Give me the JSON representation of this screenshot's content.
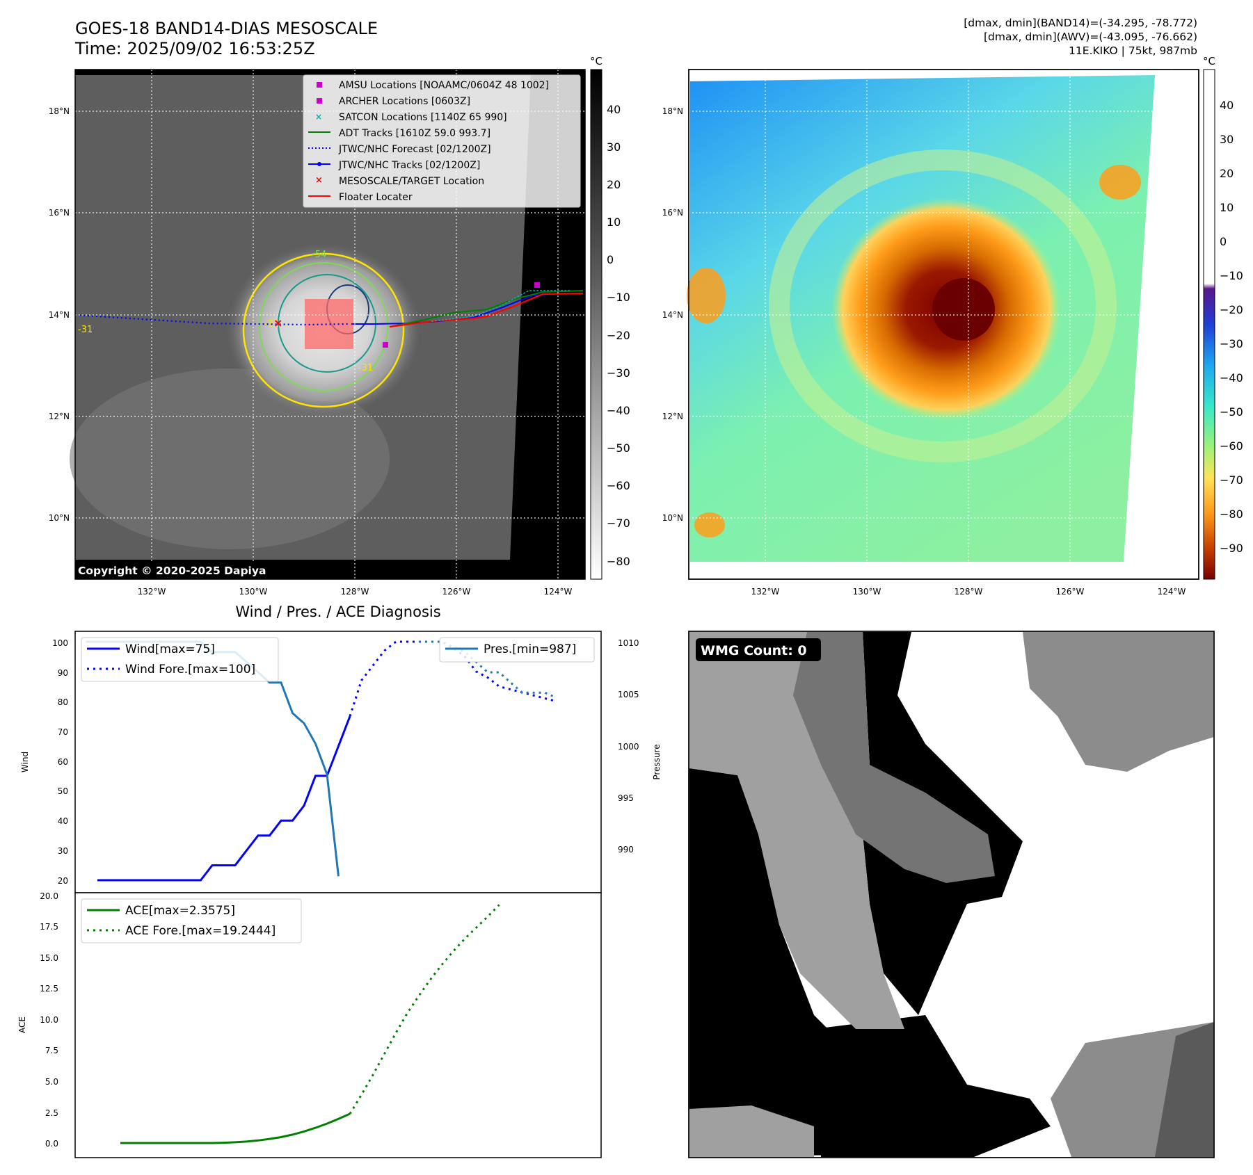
{
  "header": {
    "title_line1": "GOES-18 BAND14-DIAS MESOSCALE",
    "title_line2": "Time: 2025/09/02 16:53:25Z",
    "stats_line1": "[dmax, dmin](BAND14)=(-34.295, -78.772)",
    "stats_line2": "[dmax, dmin](AWV)=(-43.095, -76.662)",
    "stats_line3": "11E.KIKO | 75kt, 987mb"
  },
  "ir_map": {
    "lat_ticks": [
      "18°N",
      "16°N",
      "14°N",
      "12°N",
      "10°N"
    ],
    "lon_ticks": [
      "132°W",
      "130°W",
      "128°W",
      "126°W",
      "124°W"
    ],
    "colorbar_unit": "°C",
    "colorbar_ticks": [
      "40",
      "30",
      "20",
      "10",
      "0",
      "−10",
      "−20",
      "−30",
      "−40",
      "−50",
      "−60",
      "−70",
      "−80"
    ],
    "contour_labels": [
      "-54",
      "-31",
      "-31",
      "-31"
    ],
    "copyright": "Copyright © 2020-2025 Dapiya",
    "legend": [
      {
        "label": "AMSU Locations [NOAAMC/0604Z 48 1002]",
        "color": "#cc00cc",
        "marker": "square"
      },
      {
        "label": "ARCHER Locations [0603Z]",
        "color": "#cc00cc",
        "marker": "square"
      },
      {
        "label": "SATCON Locations [1140Z 65 990]",
        "color": "#00b3b3",
        "marker": "x"
      },
      {
        "label": "ADT Tracks [1610Z 59.0 993.7]",
        "color": "#008000",
        "marker": "line"
      },
      {
        "label": "JTWC/NHC Forecast [02/1200Z]",
        "color": "#0000ff",
        "marker": "dotted"
      },
      {
        "label": "JTWC/NHC Tracks [02/1200Z]",
        "color": "#0000ff",
        "marker": "line-dot"
      },
      {
        "label": "MESOSCALE/TARGET Location",
        "color": "#ff0000",
        "marker": "x"
      },
      {
        "label": "Floater Locater",
        "color": "#ff0000",
        "marker": "line"
      }
    ]
  },
  "wv_map": {
    "lat_ticks": [
      "18°N",
      "16°N",
      "14°N",
      "12°N",
      "10°N"
    ],
    "lon_ticks": [
      "132°W",
      "130°W",
      "128°W",
      "126°W",
      "124°W"
    ],
    "colorbar_unit": "°C",
    "colorbar_ticks": [
      "40",
      "30",
      "20",
      "10",
      "0",
      "−10",
      "−20",
      "−30",
      "−40",
      "−50",
      "−60",
      "−70",
      "−80",
      "−90"
    ]
  },
  "diagnosis": {
    "title": "Wind / Pres. / ACE Diagnosis",
    "wind_ylabel": "Wind",
    "pressure_ylabel": "Pressure",
    "ace_ylabel": "ACE",
    "wind_ticks": [
      "100",
      "90",
      "80",
      "70",
      "60",
      "50",
      "40",
      "30",
      "20"
    ],
    "pressure_ticks": [
      "1010",
      "1005",
      "1000",
      "995",
      "990"
    ],
    "ace_ticks": [
      "20.0",
      "17.5",
      "15.0",
      "12.5",
      "10.0",
      "7.5",
      "5.0",
      "2.5",
      "0.0"
    ],
    "legend_wind": "Wind[max=75]",
    "legend_wind_fore": "Wind Fore.[max=100]",
    "legend_pres": "Pres.[min=987]",
    "legend_ace": "ACE[max=2.3575]",
    "legend_ace_fore": "ACE Fore.[max=19.2444]",
    "colors": {
      "wind": "#0000ff",
      "pressure": "#1f77b4",
      "ace": "#008000"
    }
  },
  "wmg": {
    "badge": "WMG Count: 0"
  },
  "chart_data": [
    {
      "type": "line",
      "name": "wind",
      "ylim": [
        20,
        100
      ],
      "series": [
        {
          "name": "Wind[max=75]",
          "style": "solid",
          "values": [
            20,
            20,
            20,
            20,
            20,
            20,
            20,
            20,
            20,
            20,
            25,
            25,
            25,
            30,
            35,
            35,
            40,
            40,
            45,
            55,
            55,
            65,
            75
          ]
        },
        {
          "name": "Wind Fore.[max=100]",
          "style": "dotted",
          "values": [
            75,
            87,
            92,
            97,
            100,
            100,
            100,
            100,
            100,
            98,
            95,
            90,
            88,
            85,
            84,
            83,
            82,
            81,
            80
          ]
        }
      ]
    },
    {
      "type": "line",
      "name": "pressure",
      "ylim": [
        986,
        1010
      ],
      "series": [
        {
          "name": "Pres.[min=987]",
          "style": "solid",
          "values": [
            1010,
            1010,
            1010,
            1010,
            1010,
            1010,
            1010,
            1010,
            1010,
            1010,
            1010,
            1009,
            1009,
            1009,
            1008,
            1007,
            1006,
            1006,
            1003,
            1002,
            1000,
            997,
            987
          ]
        },
        {
          "name": "pressure-forecast",
          "style": "dotted",
          "values": [
            1010,
            1010,
            1010,
            1009.5,
            1009,
            1008,
            1007,
            1007,
            1006,
            1005,
            1005,
            1005,
            1004.5
          ]
        }
      ]
    },
    {
      "type": "line",
      "name": "ace",
      "ylim": [
        0,
        20
      ],
      "series": [
        {
          "name": "ACE[max=2.3575]",
          "style": "solid",
          "values": [
            0,
            0,
            0,
            0,
            0,
            0,
            0,
            0,
            0,
            0.02,
            0.06,
            0.12,
            0.21,
            0.33,
            0.48,
            0.68,
            0.93,
            1.23,
            1.57,
            1.95,
            2.36
          ]
        },
        {
          "name": "ACE Fore.[max=19.2444]",
          "style": "dotted",
          "values": [
            2.36,
            3.9,
            5.5,
            7.2,
            8.9,
            10.5,
            11.9,
            13.2,
            14.4,
            15.5,
            16.5,
            17.4,
            18.3,
            19.24
          ]
        }
      ]
    }
  ]
}
